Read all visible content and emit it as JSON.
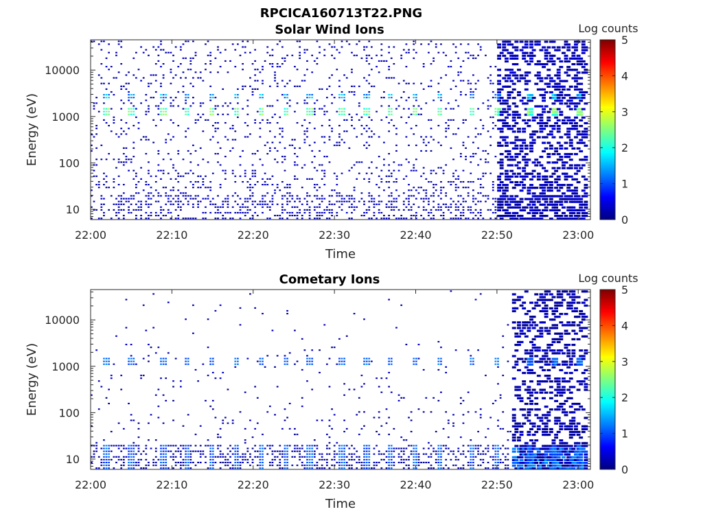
{
  "figure": {
    "title": "RPCICA160713T22.PNG"
  },
  "colormap": {
    "name": "jet",
    "stops": [
      "#00007f",
      "#0000ff",
      "#007fff",
      "#00ffff",
      "#7fff7f",
      "#ffff00",
      "#ff7f00",
      "#ff0000",
      "#7f0000"
    ]
  },
  "chart_data": [
    {
      "type": "heatmap",
      "title": "Solar Wind Ions",
      "xlabel": "Time",
      "ylabel": "Energy (eV)",
      "x_ticks": [
        "22:00",
        "22:10",
        "22:20",
        "22:30",
        "22:40",
        "22:50",
        "23:00"
      ],
      "y_ticks": [
        "10",
        "100",
        "1000",
        "10000"
      ],
      "y_scale": "log",
      "ylim": [
        6,
        45000
      ],
      "xlim_minutes": [
        0,
        61.5
      ],
      "colorbar": {
        "label": "Log counts",
        "ticks": [
          "0",
          "1",
          "2",
          "3",
          "4",
          "5"
        ],
        "range": [
          0,
          5
        ]
      },
      "features": {
        "beam_energy_eV": 1300,
        "beam_peak_log_counts": 2.5,
        "beam_times": [
          "22:02",
          "22:05",
          "22:09",
          "22:12",
          "22:15",
          "22:18",
          "22:21",
          "22:24",
          "22:27",
          "22:31",
          "22:34",
          "22:37",
          "22:40",
          "22:43",
          "22:47",
          "22:50",
          "22:54",
          "22:57",
          "23:00"
        ],
        "background_log_counts": 0.1,
        "dense_region_after": "22:50"
      }
    },
    {
      "type": "heatmap",
      "title": "Cometary Ions",
      "xlabel": "Time",
      "ylabel": "Energy (eV)",
      "x_ticks": [
        "22:00",
        "22:10",
        "22:20",
        "22:30",
        "22:40",
        "22:50",
        "23:00"
      ],
      "y_ticks": [
        "10",
        "100",
        "1000",
        "10000"
      ],
      "y_scale": "log",
      "ylim": [
        6,
        45000
      ],
      "xlim_minutes": [
        0,
        61.5
      ],
      "colorbar": {
        "label": "Log counts",
        "ticks": [
          "0",
          "1",
          "2",
          "3",
          "4",
          "5"
        ],
        "range": [
          0,
          5
        ]
      },
      "features": {
        "beam_energy_eV": 1300,
        "beam_peak_log_counts": 1.2,
        "low_energy_band_eV": [
          6,
          20
        ],
        "low_energy_peak_log_counts": 1.3,
        "background_log_counts": 0.05,
        "dense_region_after": "22:52"
      }
    }
  ]
}
